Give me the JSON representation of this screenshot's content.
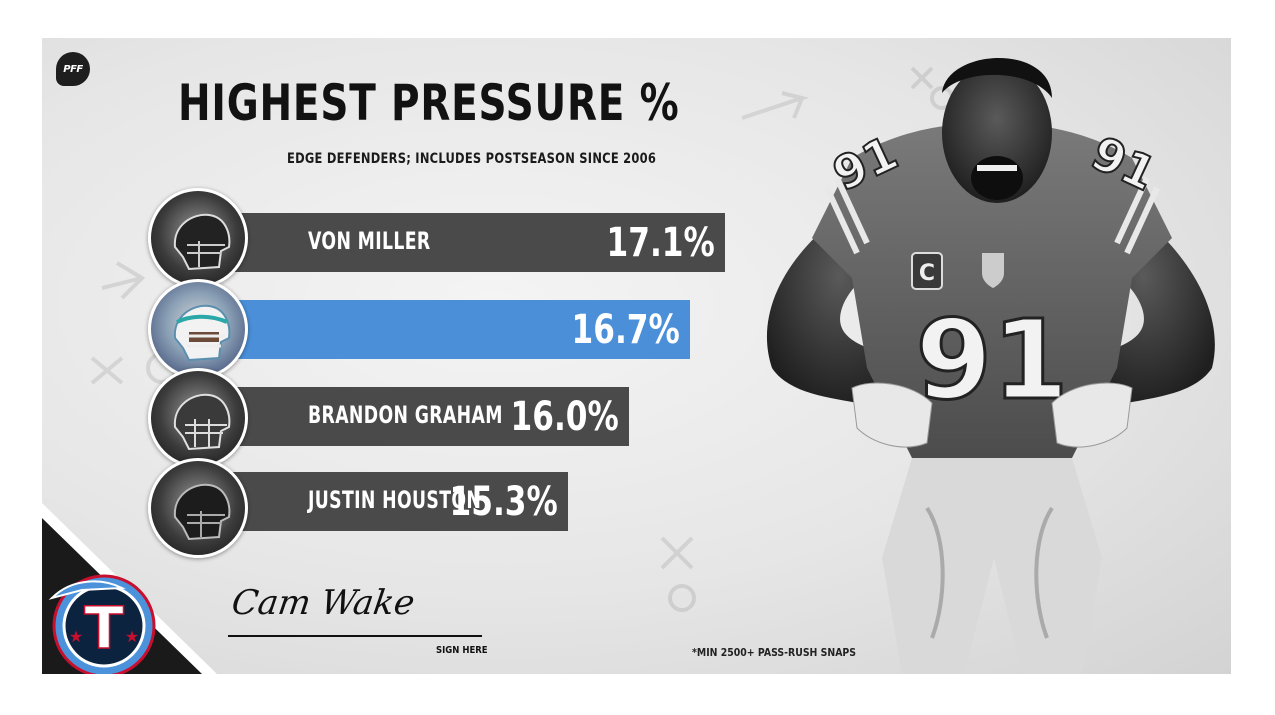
{
  "brand": {
    "logo_text": "PFF"
  },
  "chart_data": {
    "type": "bar",
    "orientation": "horizontal",
    "title": "HIGHEST PRESSURE %",
    "subtitle": "EDGE DEFENDERS; INCLUDES POSTSEASON SINCE 2006",
    "categories": [
      "VON MILLER",
      "",
      "BRANDON GRAHAM",
      "JUSTIN HOUSTON"
    ],
    "values": [
      17.1,
      16.7,
      16.0,
      15.3
    ],
    "value_labels": [
      "17.1%",
      "16.7%",
      "16.0%",
      "15.3%"
    ],
    "highlight_index": 1,
    "colors": {
      "default": "#4a4a4a",
      "highlight": "#4a8fd8"
    },
    "xlim": [
      0,
      17.1
    ],
    "xlabel": "",
    "ylabel": ""
  },
  "signature": {
    "name": "Cam Wake",
    "label": "SIGN HERE"
  },
  "footnote": "*MIN 2500+ PASS-RUSH SNAPS",
  "player": {
    "jersey_number": "91",
    "captain_patch": "C"
  },
  "team": {
    "logo_letter": "T"
  }
}
